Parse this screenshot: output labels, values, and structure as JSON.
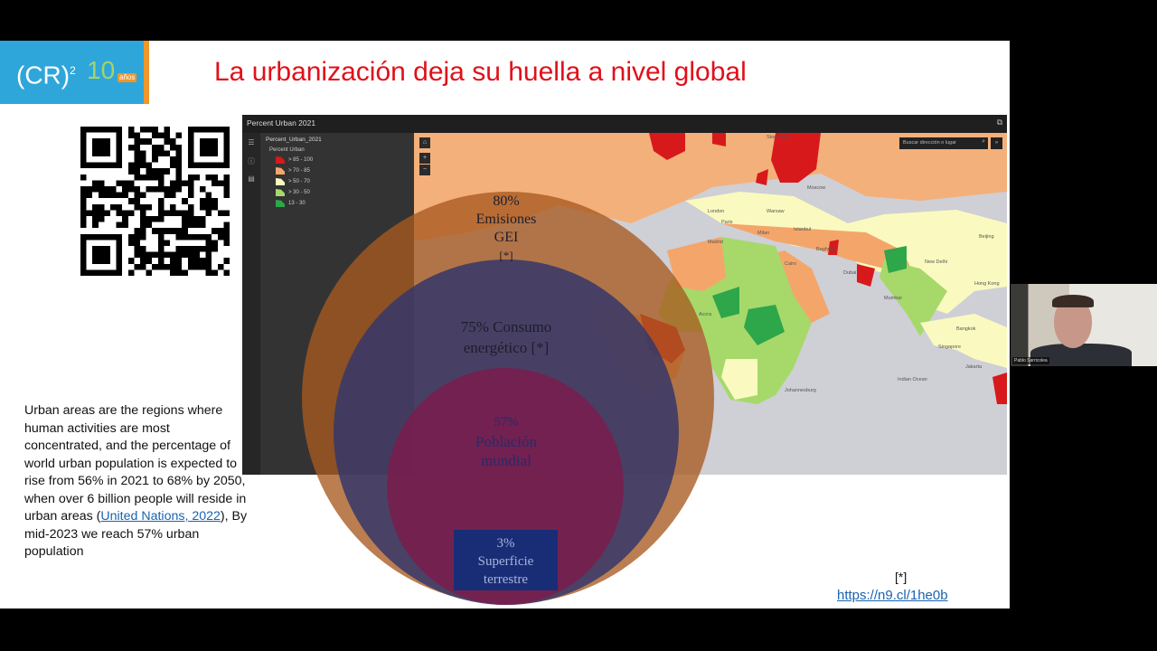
{
  "slide": {
    "logo": {
      "text": "(CR)",
      "superscript": "2",
      "number": "10",
      "badge": "años"
    },
    "title": "La urbanización deja su huella a nivel global",
    "caption": {
      "before_link": "Urban areas are the regions where human activities are most concentrated, and the percentage of world urban population is expected to rise from 56% in 2021 to 68% by 2050, when over 6 billion people will reside in urban areas (",
      "link": "United Nations, 2022",
      "after_link": "), By mid-2023 we reach 57% urban population"
    },
    "reference_mark": "[*]",
    "reference_link": " https://n9.cl/1he0b"
  },
  "map_app": {
    "title": "Percent Urban 2021",
    "layer_name": "Percent_Urban_2021",
    "legend_title": "Percent Urban",
    "legend": [
      {
        "label": "> 85 - 100",
        "color": "#d7191c"
      },
      {
        "label": "> 70 - 85",
        "color": "#f4a66a"
      },
      {
        "label": "> 50 - 70",
        "color": "#fafac0"
      },
      {
        "label": "> 30 - 50",
        "color": "#a6d96a"
      },
      {
        "label": "13 - 30",
        "color": "#2ea64a"
      }
    ],
    "search_placeholder": "Buscar dirección o lugar",
    "cities": [
      "Stockholm",
      "Moscow",
      "London",
      "Paris",
      "Warsaw",
      "Milan",
      "Madrid",
      "Istanbul",
      "Baghdad",
      "Cairo",
      "Dubai",
      "New Delhi",
      "Mumbai",
      "Bangkok",
      "Singapore",
      "Jakarta",
      "Hong Kong",
      "Beijing",
      "Accra",
      "Johannesburg",
      "Indian Ocean"
    ]
  },
  "venn": [
    {
      "line1": "80%",
      "line2": "Emisiones",
      "line3": "GEI",
      "line4": "[*]"
    },
    {
      "line1": "75% Consumo",
      "line2": "energético [*]"
    },
    {
      "line1": "57%",
      "line2": "Población",
      "line3": "mundial"
    },
    {
      "line1": "3%",
      "line2": "Superficie",
      "line3": "terrestre"
    }
  ],
  "webcam": {
    "name": "Pablo Sarricolea"
  }
}
